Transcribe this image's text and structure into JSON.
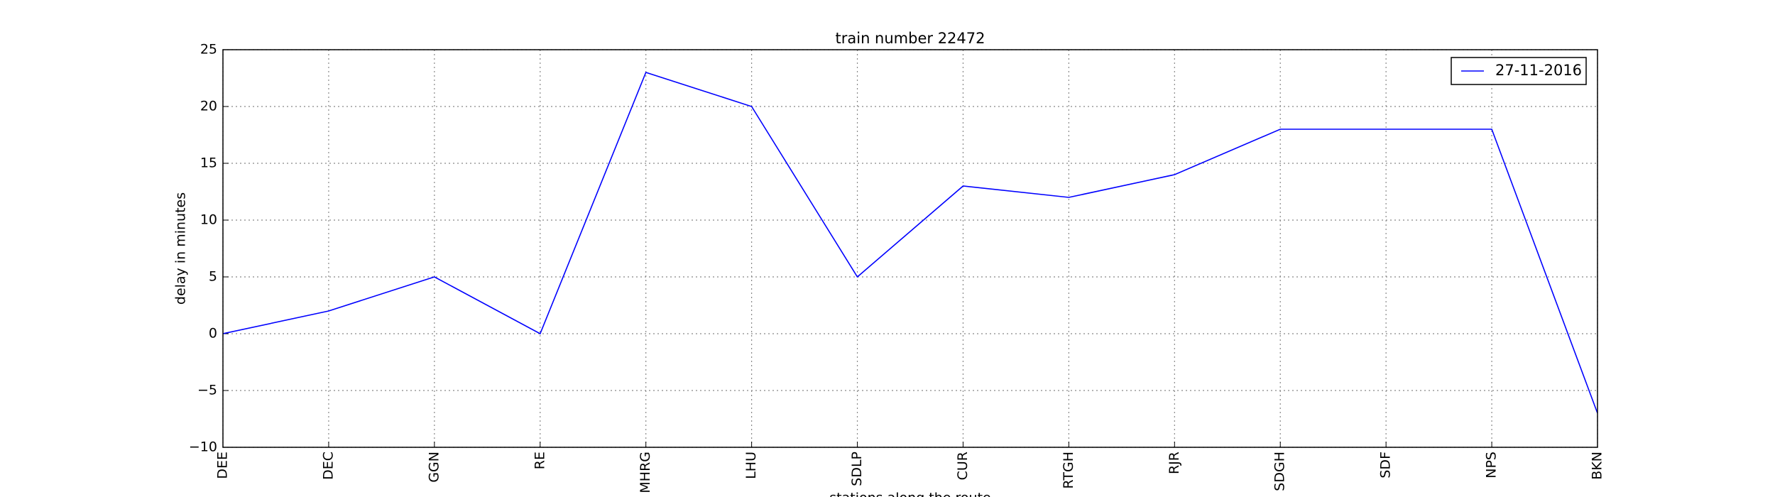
{
  "chart_data": {
    "type": "line",
    "title": "train number 22472",
    "x_label": "stations along the route",
    "y_label": "delay in minutes",
    "categories": [
      "DEE",
      "DEC",
      "GGN",
      "RE",
      "MHRG",
      "LHU",
      "SDLP",
      "CUR",
      "RTGH",
      "RJR",
      "SDGH",
      "SDF",
      "NPS",
      "BKN"
    ],
    "series": [
      {
        "name": "27-11-2016",
        "color": "#0000ff",
        "values": [
          0,
          2,
          5,
          0,
          23,
          20,
          5,
          13,
          12,
          14,
          18,
          18,
          18,
          -7
        ]
      }
    ],
    "ylim": [
      -10,
      25
    ],
    "yticks": [
      {
        "value": -10,
        "label": "−10"
      },
      {
        "value": -5,
        "label": "−5"
      },
      0,
      5,
      10,
      15,
      20,
      25
    ],
    "grid": true,
    "legend": "upper right"
  }
}
